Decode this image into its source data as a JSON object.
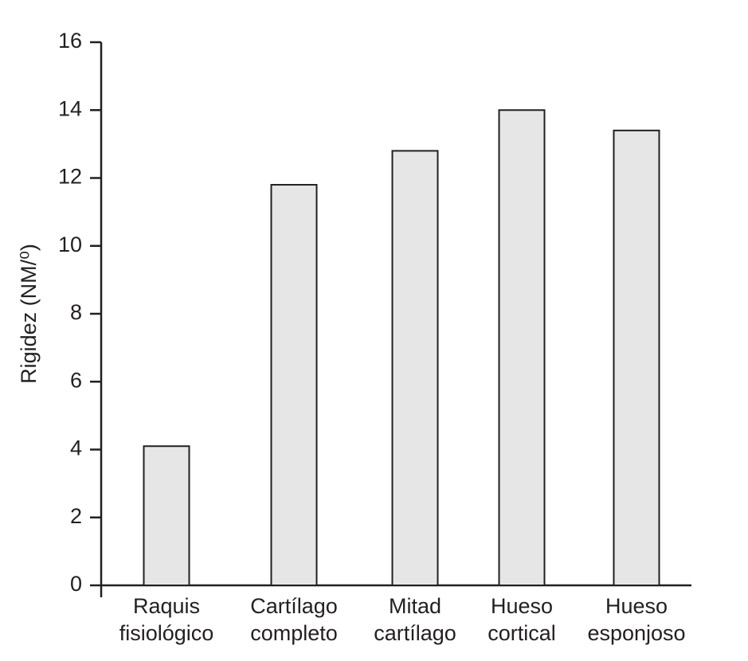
{
  "chart_data": {
    "type": "bar",
    "categories": [
      [
        "Raquis",
        "fisiológico"
      ],
      [
        "Cartílago",
        "completo"
      ],
      [
        "Mitad",
        "cartílago"
      ],
      [
        "Hueso",
        "cortical"
      ],
      [
        "Hueso",
        "esponjoso"
      ]
    ],
    "values": [
      4.1,
      11.8,
      12.8,
      14.0,
      13.4
    ],
    "color": "#e6e6e6",
    "y_label": "Rigidez (NM/⁰)",
    "ylim": [
      0,
      16
    ],
    "yticks": [
      0,
      2,
      4,
      6,
      8,
      10,
      12,
      14,
      16
    ]
  }
}
